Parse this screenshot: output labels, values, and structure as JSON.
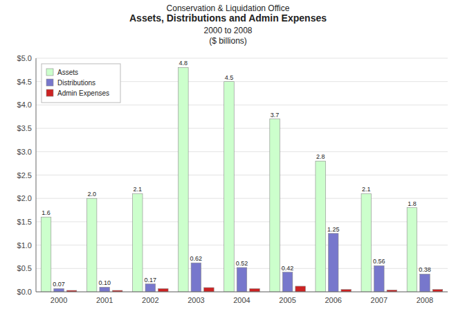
{
  "chart_data": {
    "type": "bar",
    "title": [
      "Conservation & Liquidation Office",
      "Assets, Distributions and Admin Expenses",
      "2000 to 2008",
      "($ billions)"
    ],
    "categories": [
      "2000",
      "2001",
      "2002",
      "2003",
      "2004",
      "2005",
      "2006",
      "2007",
      "2008"
    ],
    "series": [
      {
        "name": "Assets",
        "color": "#ccffcc",
        "values": [
          1.6,
          2.0,
          2.1,
          4.8,
          4.5,
          3.7,
          2.8,
          2.1,
          1.8
        ],
        "value_labels": [
          "1.6",
          "2.0",
          "2.1",
          "4.8",
          "4.5",
          "3.7",
          "2.8",
          "2.1",
          "1.8"
        ]
      },
      {
        "name": "Distributions",
        "color": "#7777cc",
        "values": [
          0.07,
          0.1,
          0.17,
          0.62,
          0.52,
          0.42,
          1.25,
          0.56,
          0.38
        ],
        "value_labels": [
          "0.07",
          "0.10",
          "0.17",
          "0.62",
          "0.52",
          "0.42",
          "1.25",
          "0.56",
          "0.38"
        ]
      },
      {
        "name": "Admin Expenses",
        "color": "#cc2222",
        "values": [
          0.03,
          0.03,
          0.07,
          0.09,
          0.07,
          0.12,
          0.05,
          0.04,
          0.05
        ]
      }
    ],
    "ylim": [
      0,
      5.0
    ],
    "yticks": [
      {
        "value": 0.0,
        "label": "$0.0"
      },
      {
        "value": 0.5,
        "label": "$0.5"
      },
      {
        "value": 1.0,
        "label": "$1.0"
      },
      {
        "value": 1.5,
        "label": "$1.5"
      },
      {
        "value": 2.0,
        "label": "$2.0"
      },
      {
        "value": 2.5,
        "label": "$2.5"
      },
      {
        "value": 3.0,
        "label": "$3.0"
      },
      {
        "value": 3.5,
        "label": "$3.5"
      },
      {
        "value": 4.0,
        "label": "$4.0"
      },
      {
        "value": 4.5,
        "label": "$4.5"
      },
      {
        "value": 5.0,
        "label": "$5.0"
      }
    ],
    "grid": true,
    "legend": "upper left",
    "data_labels": true
  }
}
